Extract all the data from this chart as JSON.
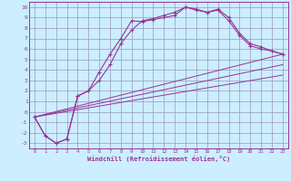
{
  "xlabel": "Windchill (Refroidissement éolien,°C)",
  "bg_color": "#cceeff",
  "grid_color": "#9999bb",
  "line_color": "#993399",
  "xlim": [
    -0.5,
    23.5
  ],
  "ylim": [
    -3.5,
    10.5
  ],
  "xticks": [
    0,
    1,
    2,
    3,
    4,
    5,
    6,
    7,
    8,
    9,
    10,
    11,
    12,
    13,
    14,
    15,
    16,
    17,
    18,
    19,
    20,
    21,
    22,
    23
  ],
  "yticks": [
    -3,
    -2,
    -1,
    0,
    1,
    2,
    3,
    4,
    5,
    6,
    7,
    8,
    9,
    10
  ],
  "curve1_x": [
    0,
    1,
    2,
    3,
    4,
    5,
    6,
    7,
    8,
    9,
    10,
    11,
    12,
    13,
    14,
    15,
    16,
    17,
    18,
    19,
    20,
    21,
    22,
    23
  ],
  "curve1_y": [
    -0.5,
    -2.3,
    -3.0,
    -2.6,
    1.5,
    2.0,
    3.8,
    5.5,
    7.0,
    8.7,
    8.6,
    8.8,
    9.0,
    9.2,
    10.0,
    9.7,
    9.5,
    9.7,
    8.7,
    7.3,
    6.3,
    6.0,
    5.8,
    5.5
  ],
  "curve2_x": [
    0,
    1,
    2,
    3,
    4,
    5,
    6,
    7,
    8,
    9,
    10,
    11,
    12,
    13,
    14,
    15,
    16,
    17,
    18,
    19,
    20,
    21,
    22,
    23
  ],
  "curve2_y": [
    -0.5,
    -2.3,
    -3.0,
    -2.6,
    1.5,
    2.0,
    3.0,
    4.5,
    6.5,
    7.8,
    8.7,
    8.9,
    9.2,
    9.5,
    10.0,
    9.8,
    9.5,
    9.8,
    9.0,
    7.5,
    6.5,
    6.2,
    5.8,
    5.5
  ],
  "line1_x": [
    0,
    23
  ],
  "line1_y": [
    -0.5,
    5.5
  ],
  "line2_x": [
    0,
    23
  ],
  "line2_y": [
    -0.5,
    4.5
  ],
  "line3_x": [
    0,
    23
  ],
  "line3_y": [
    -0.5,
    3.5
  ]
}
